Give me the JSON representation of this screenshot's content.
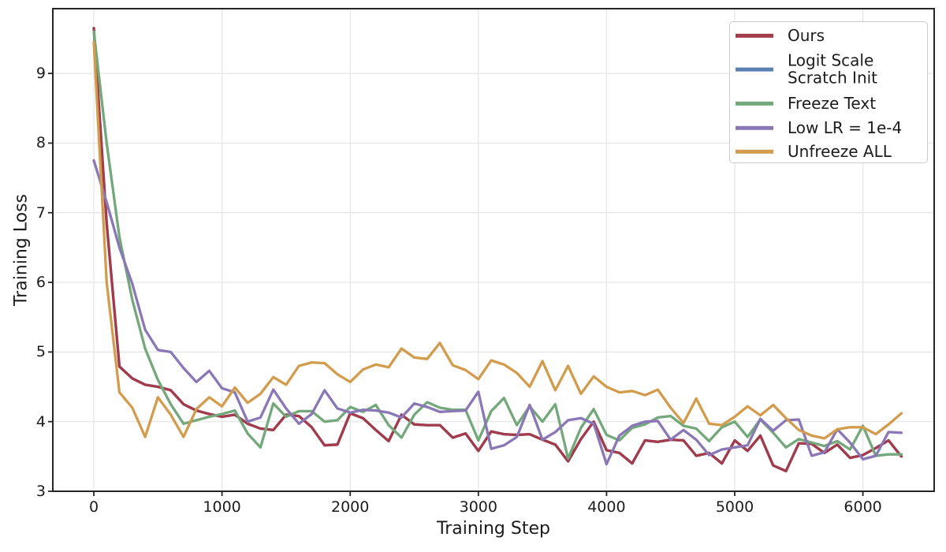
{
  "figure_title": "",
  "axes": {
    "xlabel": "Training Step",
    "ylabel": "Training Loss",
    "xtick_labels": [
      "0",
      "1000",
      "2000",
      "3000",
      "4000",
      "5000",
      "6000"
    ],
    "ytick_labels": [
      "3",
      "4",
      "5",
      "6",
      "7",
      "8",
      "9"
    ]
  },
  "legend": {
    "position": "upper right",
    "items": [
      {
        "lines": [
          "Ours"
        ],
        "series_index": 0
      },
      {
        "lines": [
          "Logit Scale",
          "Scratch Init"
        ],
        "series_index": 1
      },
      {
        "lines": [
          "Freeze Text"
        ],
        "series_index": 2
      },
      {
        "lines": [
          "Low LR = 1e-4"
        ],
        "series_index": 3
      },
      {
        "lines": [
          "Unfreeze ALL"
        ],
        "series_index": 4
      }
    ]
  },
  "chart_data": {
    "type": "line",
    "title": "",
    "xlabel": "Training Step",
    "ylabel": "Training Loss",
    "grid": true,
    "grid_color": "#e5e5e5",
    "spine_color": "#262626",
    "background": "#ffffff",
    "xlim": [
      -320,
      6556
    ],
    "ylim": [
      3,
      9.93
    ],
    "xticks": [
      0,
      1000,
      2000,
      3000,
      4000,
      5000,
      6000
    ],
    "yticks": [
      3,
      4,
      5,
      6,
      7,
      8,
      9
    ],
    "legend_position": "upper right",
    "x": [
      0,
      100,
      200,
      300,
      400,
      500,
      600,
      700,
      800,
      900,
      1000,
      1100,
      1200,
      1300,
      1400,
      1500,
      1600,
      1700,
      1800,
      1900,
      2000,
      2100,
      2200,
      2300,
      2400,
      2500,
      2600,
      2700,
      2800,
      2900,
      3000,
      3100,
      3200,
      3300,
      3400,
      3500,
      3600,
      3700,
      3800,
      3900,
      4000,
      4100,
      4200,
      4300,
      4400,
      4500,
      4600,
      4700,
      4800,
      4900,
      5000,
      5100,
      5200,
      5300,
      5400,
      5500,
      5600,
      5700,
      5800,
      5900,
      6000,
      6100,
      6200,
      6300
    ],
    "series": [
      {
        "name": "Ours",
        "color": "#A33B4B",
        "values": [
          9.65,
          6.85,
          4.79,
          4.62,
          4.53,
          4.5,
          4.45,
          4.25,
          4.16,
          4.11,
          4.07,
          4.1,
          3.97,
          3.9,
          3.88,
          4.1,
          4.08,
          3.92,
          3.66,
          3.67,
          4.12,
          4.05,
          3.88,
          3.72,
          4.1,
          3.96,
          3.95,
          3.95,
          3.77,
          3.83,
          3.58,
          3.86,
          3.82,
          3.81,
          3.82,
          3.74,
          3.67,
          3.43,
          3.75,
          4.0,
          3.59,
          3.55,
          3.4,
          3.73,
          3.71,
          3.74,
          3.73,
          3.51,
          3.55,
          3.4,
          3.73,
          3.58,
          3.8,
          3.37,
          3.29,
          3.69,
          3.68,
          3.55,
          3.67,
          3.48,
          3.52,
          3.62,
          3.73,
          3.5
        ]
      },
      {
        "name": "Logit Scale Scratch Init",
        "color": "#5B80B2",
        "values": [
          9.65,
          6.85,
          4.79,
          4.62,
          4.53,
          4.5,
          4.45,
          4.25,
          4.16,
          4.11,
          4.07,
          4.1,
          3.97,
          3.9,
          3.88,
          4.1,
          4.08,
          3.92,
          3.66,
          3.67,
          4.12,
          4.05,
          3.88,
          3.72,
          4.1,
          3.96,
          3.95,
          3.95,
          3.77,
          3.83,
          3.58,
          3.86,
          3.82,
          3.81,
          3.82,
          3.74,
          3.67,
          3.43,
          3.75,
          4.0,
          3.59,
          3.55,
          3.4,
          3.73,
          3.71,
          3.74,
          3.73,
          3.51,
          3.55,
          3.4,
          3.73,
          3.58,
          3.8,
          3.37,
          3.29,
          3.69,
          3.68,
          3.55,
          3.67,
          3.48,
          3.52,
          3.62,
          3.73,
          3.5
        ]
      },
      {
        "name": "Freeze Text",
        "color": "#73A87A",
        "values": [
          9.6,
          8.0,
          6.65,
          5.75,
          5.05,
          4.6,
          4.25,
          3.97,
          4.02,
          4.07,
          4.11,
          4.16,
          3.83,
          3.63,
          4.26,
          4.07,
          4.15,
          4.15,
          4.0,
          4.02,
          4.21,
          4.14,
          4.24,
          3.95,
          3.77,
          4.1,
          4.28,
          4.2,
          4.17,
          4.17,
          3.73,
          4.15,
          4.34,
          3.95,
          4.22,
          4.0,
          4.25,
          3.47,
          3.91,
          4.18,
          3.81,
          3.73,
          3.91,
          3.96,
          4.06,
          4.08,
          3.94,
          3.9,
          3.72,
          3.92,
          4.0,
          3.78,
          4.03,
          3.84,
          3.63,
          3.75,
          3.7,
          3.65,
          3.72,
          3.6,
          3.94,
          3.51,
          3.53,
          3.53
        ]
      },
      {
        "name": "Low LR = 1e-4",
        "color": "#8A77B6",
        "values": [
          7.75,
          7.15,
          6.5,
          5.98,
          5.32,
          5.03,
          5.0,
          4.77,
          4.57,
          4.73,
          4.48,
          4.42,
          4.0,
          4.06,
          4.46,
          4.19,
          3.97,
          4.11,
          4.45,
          4.19,
          4.13,
          4.17,
          4.16,
          4.13,
          4.06,
          4.26,
          4.21,
          4.14,
          4.15,
          4.16,
          4.43,
          3.61,
          3.66,
          3.78,
          4.24,
          3.74,
          3.85,
          4.02,
          4.05,
          3.97,
          3.39,
          3.8,
          3.94,
          4.0,
          4.01,
          3.74,
          3.88,
          3.74,
          3.52,
          3.6,
          3.63,
          3.66,
          4.04,
          3.87,
          4.02,
          4.03,
          3.51,
          3.56,
          3.89,
          3.7,
          3.46,
          3.51,
          3.85,
          3.84
        ]
      },
      {
        "name": "Unfreeze ALL",
        "color": "#D29C4C",
        "values": [
          9.45,
          6.0,
          4.42,
          4.2,
          3.78,
          4.35,
          4.1,
          3.78,
          4.18,
          4.35,
          4.22,
          4.49,
          4.27,
          4.4,
          4.64,
          4.53,
          4.8,
          4.85,
          4.84,
          4.68,
          4.57,
          4.75,
          4.82,
          4.78,
          5.05,
          4.92,
          4.9,
          5.13,
          4.81,
          4.74,
          4.61,
          4.88,
          4.82,
          4.7,
          4.5,
          4.87,
          4.45,
          4.8,
          4.4,
          4.65,
          4.5,
          4.42,
          4.44,
          4.38,
          4.46,
          4.2,
          3.98,
          4.33,
          3.97,
          3.95,
          4.07,
          4.22,
          4.09,
          4.24,
          4.05,
          3.88,
          3.8,
          3.76,
          3.89,
          3.92,
          3.92,
          3.82,
          3.96,
          4.12
        ]
      }
    ],
    "draw_order": [
      1,
      0,
      2,
      3,
      4
    ]
  }
}
